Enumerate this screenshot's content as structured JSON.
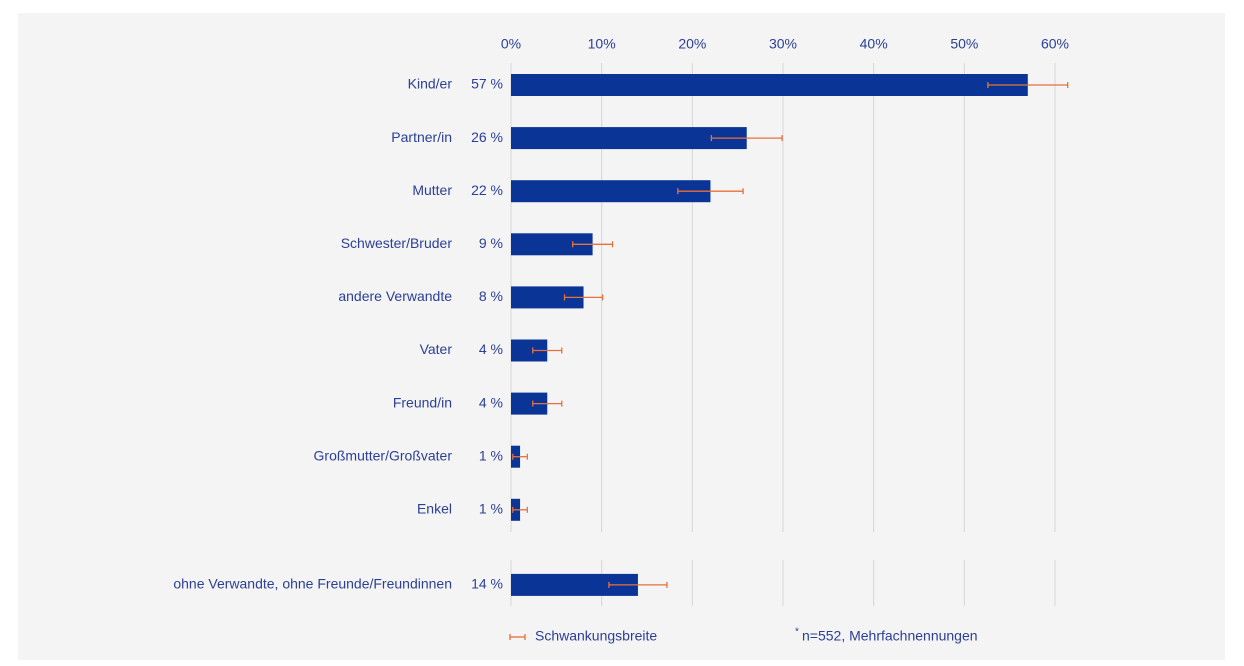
{
  "chart_data": {
    "type": "bar",
    "orientation": "horizontal",
    "categories": [
      "Kind/er",
      "Partner/in",
      "Mutter",
      "Schwester/Bruder",
      "andere Verwandte",
      "Vater",
      "Freund/in",
      "Großmutter/Großvater",
      "Enkel",
      "ohne Verwandte, ohne Freunde/Freundinnen"
    ],
    "values": [
      57,
      26,
      22,
      9,
      8,
      4,
      4,
      1,
      1,
      14
    ],
    "value_labels": [
      "57 %",
      "26 %",
      "22 %",
      "9 %",
      "8 %",
      "4 %",
      "4 %",
      "1 %",
      "1 %",
      "14 %"
    ],
    "errors": [
      4.4,
      3.9,
      3.6,
      2.2,
      2.1,
      1.6,
      1.6,
      0.8,
      0.8,
      3.2
    ],
    "color": "#0a3597",
    "error_color": "#e8703a",
    "xlim": [
      0,
      60
    ],
    "xticks": [
      {
        "value": 0,
        "label": "0%"
      },
      {
        "value": 10,
        "label": "10%"
      },
      {
        "value": 20,
        "label": "20%"
      },
      {
        "value": 30,
        "label": "30%"
      },
      {
        "value": 40,
        "label": "40%"
      },
      {
        "value": 50,
        "label": "50%"
      },
      {
        "value": 60,
        "label": "60%"
      }
    ],
    "grid": true,
    "legend": "Schwankungsbreite",
    "note_marker": "*",
    "note": "n=552, Mehrfachnennungen"
  }
}
